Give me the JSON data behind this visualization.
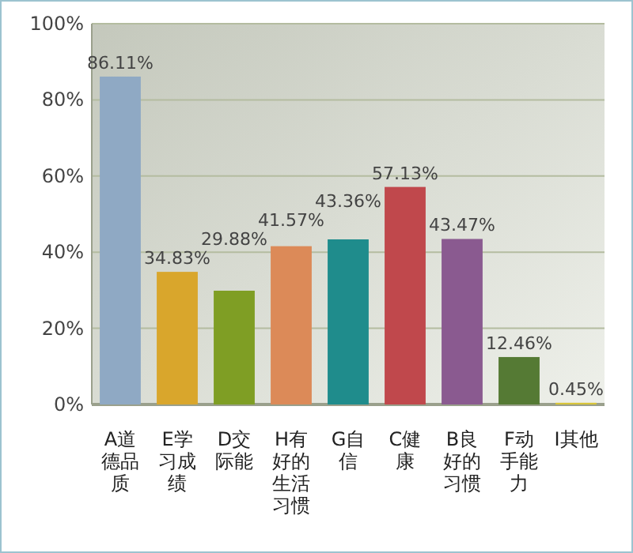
{
  "chart_data": {
    "type": "bar",
    "categories": [
      "A道德品质",
      "E学习成绩",
      "D交际能",
      "H有好的生活习惯",
      "G自信",
      "C健康",
      "B良好的习惯",
      "F动手能力",
      "I其他"
    ],
    "values": [
      86.11,
      34.83,
      29.88,
      41.57,
      43.36,
      57.13,
      43.47,
      12.46,
      0.45
    ],
    "colors": [
      "#8fa9c4",
      "#d9a62c",
      "#7f9e24",
      "#dc8a58",
      "#1f8c8c",
      "#c0484c",
      "#8a5a90",
      "#557a34",
      "#d8c438"
    ],
    "value_labels": [
      "86.11%",
      "34.83%",
      "29.88%",
      "41.57%",
      "43.36%",
      "57.13%",
      "43.47%",
      "12.46%",
      "0.45%"
    ],
    "ylim": [
      0,
      100
    ],
    "yticks": [
      {
        "value": 0,
        "label": "0%"
      },
      {
        "value": 20,
        "label": "20%"
      },
      {
        "value": 40,
        "label": "40%"
      },
      {
        "value": 60,
        "label": "60%"
      },
      {
        "value": 80,
        "label": "80%"
      },
      {
        "value": 100,
        "label": "100%"
      }
    ],
    "grid": "y"
  }
}
